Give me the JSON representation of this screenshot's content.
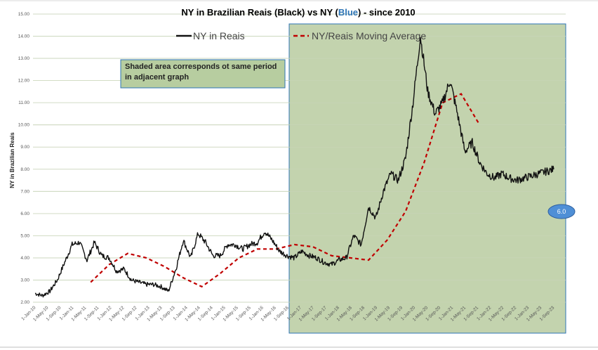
{
  "chart_data": {
    "type": "line",
    "title_parts": [
      {
        "text": "NY in Brazilian Reais (Black) vs NY (",
        "color": "#000000"
      },
      {
        "text": "Blue",
        "color": "#2e75b6"
      },
      {
        "text": ") - since 2010",
        "color": "#000000"
      }
    ],
    "ylabel": "NY in Brazilian Reais",
    "ylim": [
      2.0,
      15.0
    ],
    "y_ticks": [
      "2.00",
      "3.00",
      "4.00",
      "5.00",
      "6.00",
      "7.00",
      "8.00",
      "9.00",
      "10.00",
      "11.00",
      "12.00",
      "13.00",
      "14.00",
      "15.00"
    ],
    "x_ticks": [
      "1-Jan-10",
      "1-May-10",
      "1-Sep-10",
      "1-Jan-11",
      "1-May-11",
      "1-Sep-11",
      "1-Jan-12",
      "1-May-12",
      "1-Sep-12",
      "1-Jan-13",
      "1-May-13",
      "1-Sep-13",
      "1-Jan-14",
      "1-May-14",
      "1-Sep-14",
      "1-Jan-15",
      "1-May-15",
      "1-Sep-15",
      "1-Jan-16",
      "1-May-16",
      "1-Sep-16",
      "1-Jan-17",
      "1-May-17",
      "1-Sep-17",
      "1-Jan-18",
      "1-May-18",
      "1-Sep-18",
      "1-Jan-19",
      "1-May-19",
      "1-Sep-19",
      "1-Jan-20",
      "1-May-20",
      "1-Sep-20",
      "1-Jan-21",
      "1-May-21",
      "1-Sep-21",
      "1-Jan-22",
      "1-May-22",
      "1-Sep-22",
      "1-Jan-23",
      "1-May-23",
      "1-Sep-23"
    ],
    "grid": true,
    "legend_position": "top",
    "series": [
      {
        "name": "NY in Reais",
        "style": "solid",
        "color": "#111111",
        "x": [
          0,
          0.2,
          0.4,
          0.6,
          0.8,
          1.0,
          1.2,
          1.4,
          1.6,
          1.8,
          2.0,
          2.2,
          2.4,
          2.6,
          2.8,
          3.0,
          3.2,
          3.4,
          3.6,
          3.8,
          4.0,
          4.2,
          4.4,
          4.6,
          4.8,
          5.0,
          5.2,
          5.4,
          5.6,
          5.8,
          6.0,
          6.2,
          6.4,
          6.6,
          6.8,
          7.0,
          7.2,
          7.4,
          7.6,
          7.8,
          8.0,
          8.2,
          8.4,
          8.6,
          8.8,
          9.0,
          9.2,
          9.4,
          9.6,
          9.8,
          10.0,
          10.2,
          10.4,
          10.6,
          10.8,
          11.0,
          11.2,
          11.4,
          11.6,
          11.8,
          12.0,
          12.2,
          12.4,
          12.6,
          12.8,
          13.0,
          13.2,
          13.4,
          13.6,
          13.8,
          14.0
        ],
        "y": [
          2.4,
          2.3,
          2.5,
          3.0,
          3.8,
          4.6,
          4.7,
          3.9,
          4.7,
          4.1,
          4.0,
          3.4,
          3.5,
          3.0,
          2.9,
          2.8,
          2.8,
          2.7,
          2.5,
          3.5,
          4.8,
          4.0,
          5.1,
          4.7,
          4.1,
          4.1,
          4.6,
          4.6,
          4.4,
          4.6,
          4.7,
          5.2,
          4.8,
          4.3,
          4.1,
          4.0,
          4.3,
          4.1,
          4.0,
          3.8,
          3.7,
          3.9,
          4.0,
          5.0,
          4.6,
          6.3,
          5.8,
          7.0,
          7.8,
          7.5,
          8.5,
          11.0,
          14.0,
          11.5,
          10.5,
          11.0,
          12.0,
          10.5,
          8.8,
          9.2,
          8.3,
          7.8,
          7.6,
          7.8,
          7.6,
          7.5,
          7.6,
          7.7,
          7.8,
          7.9,
          8.0
        ]
      },
      {
        "name": "NY/Reais Moving Average",
        "style": "dashed",
        "color": "#c00000",
        "x": [
          1.5,
          2.0,
          2.5,
          3.0,
          3.5,
          4.0,
          4.5,
          5.0,
          5.5,
          6.0,
          6.5,
          7.0,
          7.5,
          8.0,
          8.5,
          9.0,
          9.5,
          10.0,
          10.5,
          11.0,
          11.5,
          12.0
        ],
        "y": [
          2.9,
          3.7,
          4.2,
          4.0,
          3.6,
          3.1,
          2.7,
          3.3,
          4.0,
          4.4,
          4.4,
          4.6,
          4.5,
          4.1,
          4.0,
          3.9,
          4.8,
          6.1,
          8.3,
          11.0,
          11.4,
          10.0
        ]
      }
    ],
    "annotations": {
      "note": [
        "Shaded area corresponds ot same period",
        "in adjacent graph"
      ],
      "badge": "6.0"
    }
  }
}
